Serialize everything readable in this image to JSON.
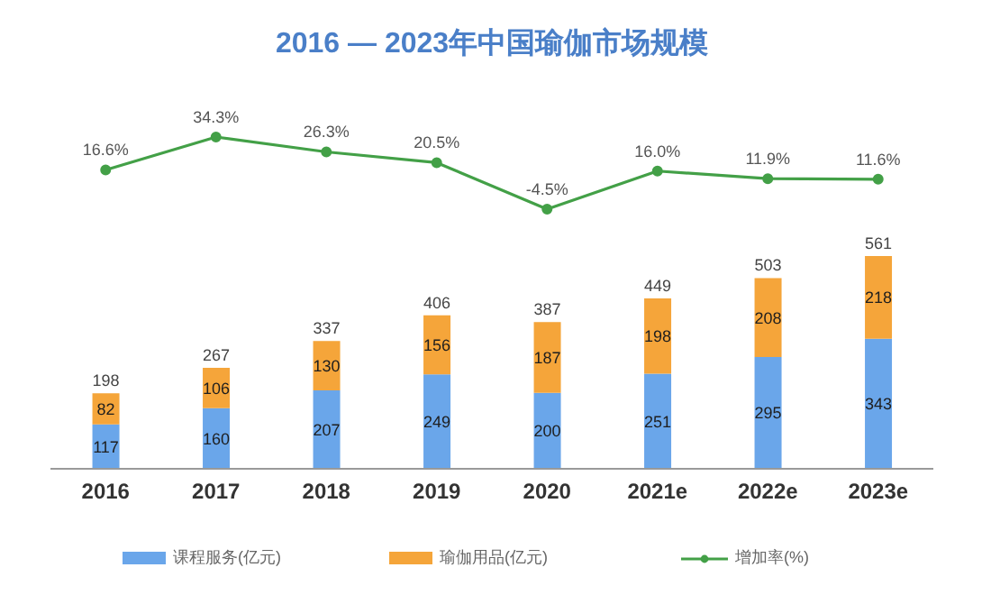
{
  "chart_data": [
    {
      "type": "line",
      "title": "2016 — 2023年中国瑜伽市场规模",
      "categories": [
        null,
        null,
        null,
        null,
        null,
        null,
        null,
        null
      ],
      "tick_labels": false,
      "legend": "bottom",
      "marker": "circle",
      "series": [
        {
          "name": "增加率(%)",
          "color": "#43a047",
          "values": [
            16.6,
            34.3,
            26.3,
            20.5,
            -4.5,
            16.0,
            11.9,
            11.6
          ],
          "value_labels": [
            "16.6%",
            "34.3%",
            "26.3%",
            "20.5%",
            "-4.5%",
            "16.0%",
            "11.9%",
            "11.6%"
          ]
        }
      ]
    },
    {
      "type": "bar",
      "categories": [
        "2016",
        "2017",
        "2018",
        "2019",
        "2020",
        "2021e",
        "2022e",
        "2023e"
      ],
      "stacked": true,
      "data_labels": true,
      "tick_labels": "x",
      "legend": "bottom",
      "series": [
        {
          "name": "课程服务(亿元)",
          "color": "#6aa6ea",
          "values": [
            117,
            160,
            207,
            249,
            200,
            251,
            295,
            343
          ]
        },
        {
          "name": "瑜伽用品(亿元)",
          "color": "#f5a53a",
          "values": [
            82,
            106,
            130,
            156,
            187,
            198,
            208,
            218
          ]
        }
      ],
      "totals": [
        "198",
        "267",
        "337",
        "406",
        "387",
        "449",
        "503",
        "561"
      ]
    }
  ]
}
